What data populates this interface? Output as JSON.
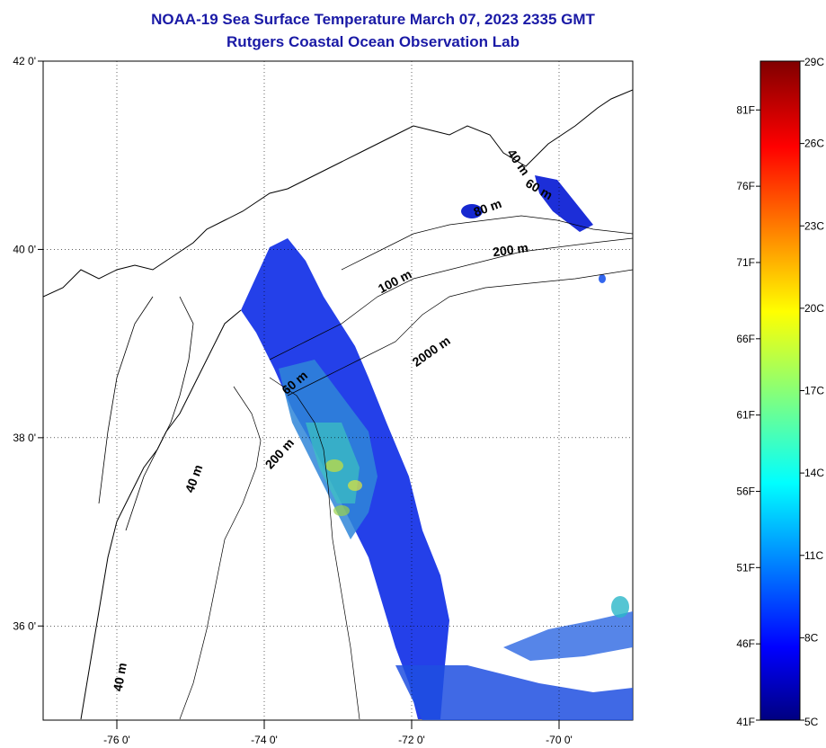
{
  "title": {
    "line1": "NOAA-19 Sea Surface Temperature March 07, 2023 2335 GMT",
    "line2": "Rutgers Coastal Ocean Observation Lab"
  },
  "axes": {
    "lon_ticks": [
      {
        "value": -76,
        "label": "-76 0'"
      },
      {
        "value": -74,
        "label": "-74 0'"
      },
      {
        "value": -72,
        "label": "-72 0'"
      },
      {
        "value": -70,
        "label": "-70 0'"
      }
    ],
    "lat_ticks": [
      {
        "value": 42,
        "label": "42 0'"
      },
      {
        "value": 40,
        "label": "40 0'"
      },
      {
        "value": 38,
        "label": "38 0'"
      },
      {
        "value": 36,
        "label": "36 0'"
      }
    ],
    "lon_range": [
      -77,
      -69
    ],
    "lat_range": [
      35,
      42
    ],
    "grid": "dotted"
  },
  "depth_contour_labels": [
    {
      "text": "40 m",
      "lon": -70.6,
      "lat": 40.9,
      "angle": 55
    },
    {
      "text": "60 m",
      "lon": -70.3,
      "lat": 40.6,
      "angle": 30
    },
    {
      "text": "80 m",
      "lon": -70.95,
      "lat": 40.4,
      "angle": -20
    },
    {
      "text": "200 m",
      "lon": -70.65,
      "lat": 39.95,
      "angle": -8
    },
    {
      "text": "100 m",
      "lon": -72.2,
      "lat": 39.62,
      "angle": -28
    },
    {
      "text": "2000 m",
      "lon": -71.7,
      "lat": 38.88,
      "angle": -35
    },
    {
      "text": "60 m",
      "lon": -73.55,
      "lat": 38.55,
      "angle": -40
    },
    {
      "text": "200 m",
      "lon": -73.75,
      "lat": 37.8,
      "angle": -48
    },
    {
      "text": "40 m",
      "lon": -74.9,
      "lat": 37.55,
      "angle": -70
    },
    {
      "text": "40 m",
      "lon": -75.9,
      "lat": 35.45,
      "angle": -80
    }
  ],
  "colorbar": {
    "vmin_c": 5,
    "vmax_c": 29,
    "celsius_labels": [
      "29C",
      "26C",
      "23C",
      "20C",
      "17C",
      "14C",
      "11C",
      "8C",
      "5C"
    ],
    "fahrenheit_labels": [
      "81F",
      "76F",
      "71F",
      "66F",
      "61F",
      "56F",
      "51F",
      "46F",
      "41F"
    ],
    "fahrenheit_values": [
      81,
      76,
      71,
      66,
      61,
      56,
      51,
      46,
      41
    ]
  },
  "colors": {
    "land": "#ffffff",
    "coast": "#000000",
    "title": "#1a1aa6"
  }
}
